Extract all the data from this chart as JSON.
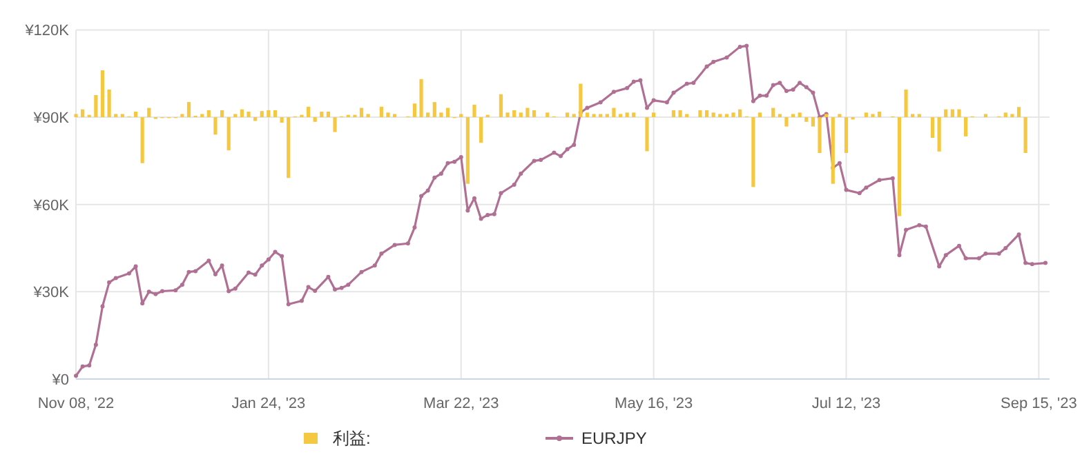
{
  "chart_data": {
    "type": "line",
    "ylim": [
      0,
      120000
    ],
    "categories": [
      "Nov 08, '22",
      null,
      null,
      null,
      null,
      null,
      null,
      null,
      null,
      null,
      null,
      null,
      null,
      null,
      null,
      null,
      null,
      null,
      null,
      null,
      null,
      null,
      null,
      null,
      null,
      null,
      null,
      null,
      null,
      "Jan 24, '23",
      null,
      null,
      null,
      null,
      null,
      null,
      null,
      null,
      null,
      null,
      null,
      null,
      null,
      null,
      null,
      null,
      null,
      null,
      null,
      null,
      null,
      null,
      null,
      null,
      null,
      null,
      null,
      null,
      "Mar 22, '23",
      null,
      null,
      null,
      null,
      null,
      null,
      null,
      null,
      null,
      null,
      null,
      null,
      null,
      null,
      null,
      null,
      null,
      null,
      null,
      null,
      null,
      null,
      null,
      null,
      null,
      null,
      null,
      null,
      "May 16, '23",
      null,
      null,
      null,
      null,
      null,
      null,
      null,
      null,
      null,
      null,
      null,
      null,
      null,
      null,
      null,
      null,
      null,
      null,
      null,
      null,
      null,
      null,
      null,
      null,
      null,
      null,
      null,
      null,
      "Jul 12, '23",
      null,
      null,
      null,
      null,
      null,
      null,
      null,
      null,
      null,
      null,
      null,
      null,
      null,
      null,
      null,
      null,
      null,
      null,
      null,
      null,
      null,
      null,
      null,
      null,
      null,
      null,
      null,
      null,
      "Sep 15, '23",
      null
    ],
    "yticks": [
      {
        "value": 0,
        "label": "¥0"
      },
      {
        "value": 30000,
        "label": "¥30K"
      },
      {
        "value": 60000,
        "label": "¥60K"
      },
      {
        "value": 90000,
        "label": "¥90K"
      },
      {
        "value": 120000,
        "label": "¥120K"
      }
    ],
    "grid": true,
    "legend": "bottom",
    "marker": "circle",
    "series": [
      {
        "name": "利益:",
        "type": "bar",
        "color": "#f5c842",
        "base": [
          90000,
          90000,
          90000,
          90000,
          90000,
          90000,
          90000,
          90000,
          90000,
          90000,
          90000,
          90000,
          90000,
          90000,
          90000,
          90000,
          90000,
          90000,
          90000,
          90000,
          90000,
          90000,
          90000,
          90000,
          90000,
          90000,
          90000,
          90000,
          90000,
          90000,
          90000,
          90000,
          90000,
          90000,
          90000,
          90000,
          90000,
          90000,
          90000,
          90000,
          90000,
          90000,
          90000,
          90000,
          90000,
          null,
          90000,
          90000,
          90000,
          null,
          90000,
          90000,
          90000,
          90000,
          90000,
          90000,
          90000,
          90000,
          90000,
          90000,
          90000,
          90000,
          90000,
          null,
          90000,
          90000,
          90000,
          90000,
          90000,
          90000,
          null,
          90000,
          90000,
          null,
          90000,
          90000,
          90000,
          90000,
          90000,
          90000,
          90000,
          90000,
          90000,
          90000,
          90000,
          null,
          90000,
          90000,
          null,
          null,
          90000,
          90000,
          90000,
          null,
          90000,
          90000,
          90000,
          90000,
          90000,
          90000,
          90000,
          90000,
          90000,
          90000,
          null,
          90000,
          90000,
          90000,
          90000,
          90000,
          90000,
          90000,
          90000,
          90000,
          90000,
          90000,
          90000,
          90000,
          null,
          90000,
          90000,
          90000,
          null,
          90000,
          90000,
          90000,
          90000,
          90000,
          null,
          90000,
          90000,
          90000,
          90000,
          90000,
          90000,
          90000,
          null,
          90000,
          null,
          90000,
          90000,
          90000,
          90000,
          90000,
          null,
          null,
          null
        ],
        "values": [
          1100,
          2700,
          800,
          7600,
          16100,
          9500,
          1100,
          1100,
          300,
          1900,
          -15800,
          3200,
          -600,
          -300,
          -300,
          -300,
          1100,
          5200,
          500,
          1100,
          2400,
          -6000,
          2400,
          -11400,
          1100,
          2700,
          1900,
          -1300,
          2100,
          2400,
          2400,
          -1900,
          -20900,
          300,
          800,
          3600,
          -1600,
          1900,
          1900,
          -5100,
          300,
          800,
          800,
          3200,
          1100,
          null,
          3600,
          1600,
          1100,
          null,
          300,
          4700,
          13100,
          1600,
          5200,
          1600,
          3200,
          -300,
          1100,
          -22900,
          4300,
          -8800,
          800,
          null,
          7900,
          1600,
          2400,
          1600,
          3200,
          2400,
          null,
          1600,
          300,
          null,
          1600,
          1100,
          11500,
          1600,
          1100,
          1100,
          1100,
          3200,
          1100,
          1600,
          1600,
          null,
          -11700,
          1600,
          null,
          null,
          2400,
          2400,
          1100,
          null,
          2400,
          2400,
          1600,
          1100,
          1100,
          1600,
          2700,
          300,
          -24000,
          1600,
          null,
          3200,
          1100,
          -3200,
          1100,
          1600,
          -1600,
          -3200,
          -12300,
          1100,
          -22900,
          1100,
          -12300,
          -800,
          null,
          1600,
          1100,
          1900,
          null,
          300,
          -34000,
          9500,
          1100,
          1100,
          null,
          -7100,
          -11800,
          2700,
          2700,
          2700,
          -6600,
          300,
          null,
          1100,
          null,
          300,
          1600,
          1100,
          3500,
          -12300,
          null,
          null,
          null
        ]
      },
      {
        "name": "EURJPY",
        "color": "#b07094",
        "values": [
          1100,
          4300,
          4700,
          11800,
          25000,
          33200,
          34700,
          null,
          36300,
          38700,
          26000,
          30000,
          29200,
          30200,
          null,
          30500,
          32400,
          36800,
          37100,
          null,
          40700,
          36000,
          39000,
          30200,
          31100,
          null,
          36600,
          35900,
          39000,
          41100,
          43700,
          42200,
          25700,
          null,
          26900,
          31600,
          30300,
          null,
          35100,
          30800,
          31300,
          32400,
          null,
          36800,
          null,
          39000,
          43100,
          null,
          46100,
          null,
          46600,
          52100,
          62900,
          64800,
          69200,
          70600,
          74200,
          74700,
          76300,
          57900,
          62100,
          55100,
          56400,
          56700,
          63900,
          null,
          66800,
          70600,
          null,
          75000,
          75300,
          null,
          77800,
          76600,
          79000,
          80500,
          91600,
          93200,
          null,
          95100,
          null,
          98700,
          null,
          100000,
          102200,
          102700,
          93200,
          95800,
          null,
          95100,
          98400,
          null,
          101500,
          101800,
          null,
          107400,
          109000,
          null,
          110500,
          null,
          114200,
          114500,
          95500,
          97400,
          97400,
          101000,
          101800,
          99000,
          99500,
          101800,
          100300,
          98400,
          90000,
          91100,
          72600,
          74200,
          65000,
          null,
          63900,
          65800,
          null,
          68400,
          null,
          69000,
          42600,
          51300,
          null,
          52900,
          52400,
          null,
          38700,
          42600,
          null,
          45800,
          41500,
          null,
          41500,
          43100,
          null,
          43100,
          45000,
          null,
          49700,
          39900,
          39500,
          null,
          39900
        ]
      }
    ]
  }
}
